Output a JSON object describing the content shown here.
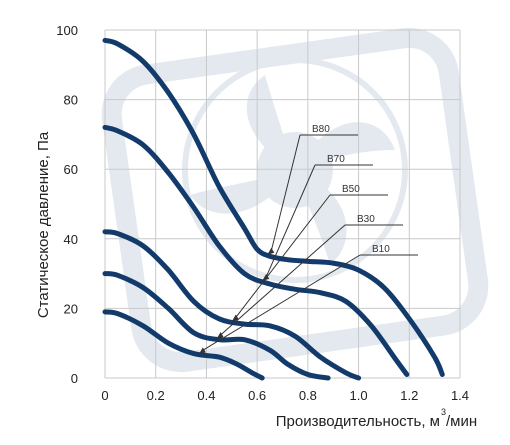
{
  "chart_data": {
    "type": "line",
    "xlabel": "Производительность, м",
    "xlabel_sup": "3",
    "xlabel_suffix": "/мин",
    "ylabel": "Статическое давление, Па",
    "xlim": [
      0,
      1.4
    ],
    "ylim": [
      0,
      100
    ],
    "x_ticks": [
      "0",
      "0.2",
      "0.4",
      "0.6",
      "0.8",
      "1.0",
      "1.2",
      "1.4"
    ],
    "y_ticks": [
      "0",
      "20",
      "40",
      "60",
      "80",
      "100"
    ],
    "grid": true,
    "series_color": "#123a6b",
    "series": [
      {
        "name": "B80",
        "x": [
          0,
          0.05,
          0.15,
          0.25,
          0.35,
          0.45,
          0.55,
          0.6,
          0.65,
          0.72,
          0.8,
          0.9,
          1.0,
          1.1,
          1.2,
          1.3,
          1.33
        ],
        "y": [
          97,
          96,
          91,
          82,
          70,
          55,
          43,
          37,
          35,
          34,
          33.5,
          33,
          31,
          26,
          17,
          6,
          1
        ]
      },
      {
        "name": "B70",
        "x": [
          0,
          0.05,
          0.15,
          0.25,
          0.35,
          0.45,
          0.55,
          0.65,
          0.75,
          0.85,
          0.95,
          1.05,
          1.15,
          1.19
        ],
        "y": [
          72,
          71,
          67,
          59,
          49,
          38,
          30,
          27,
          25.5,
          24.5,
          22,
          15,
          5,
          1
        ]
      },
      {
        "name": "B50",
        "x": [
          0,
          0.05,
          0.15,
          0.25,
          0.35,
          0.45,
          0.55,
          0.65,
          0.75,
          0.85,
          0.95,
          1.0
        ],
        "y": [
          42,
          41.5,
          38,
          31,
          22,
          17,
          15.5,
          15,
          12,
          6,
          1.5,
          0
        ]
      },
      {
        "name": "B30",
        "x": [
          0,
          0.05,
          0.15,
          0.25,
          0.35,
          0.45,
          0.55,
          0.65,
          0.72,
          0.8,
          0.88
        ],
        "y": [
          30,
          29.5,
          26,
          20,
          13,
          11,
          11,
          8,
          4,
          1,
          0
        ]
      },
      {
        "name": "B10",
        "x": [
          0,
          0.05,
          0.15,
          0.25,
          0.35,
          0.45,
          0.52,
          0.58,
          0.62
        ],
        "y": [
          19,
          18.5,
          15,
          10,
          7,
          6,
          4,
          1.5,
          0
        ]
      }
    ]
  }
}
